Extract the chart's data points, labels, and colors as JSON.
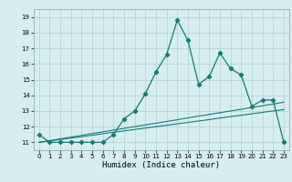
{
  "xlabel": "Humidex (Indice chaleur)",
  "bg_color": "#d6eef0",
  "grid_color": "#b0d0d3",
  "line_color": "#1a7a6e",
  "x": [
    0,
    1,
    2,
    3,
    4,
    5,
    6,
    7,
    8,
    9,
    10,
    11,
    12,
    13,
    14,
    15,
    16,
    17,
    18,
    19,
    20,
    21,
    22,
    23
  ],
  "y_main": [
    11.5,
    11.0,
    11.0,
    11.0,
    11.0,
    11.0,
    11.0,
    11.5,
    12.5,
    13.0,
    14.1,
    15.5,
    16.6,
    18.8,
    17.5,
    14.7,
    15.2,
    16.7,
    15.7,
    15.3,
    13.3,
    13.7,
    13.7,
    11.0
  ],
  "y_lin1": [
    11.0,
    11.09,
    11.18,
    11.27,
    11.36,
    11.45,
    11.55,
    11.64,
    11.73,
    11.82,
    11.91,
    12.0,
    12.09,
    12.18,
    12.27,
    12.36,
    12.45,
    12.55,
    12.64,
    12.73,
    12.82,
    12.91,
    13.0,
    13.09
  ],
  "y_lin2": [
    11.0,
    11.11,
    11.22,
    11.33,
    11.44,
    11.56,
    11.67,
    11.78,
    11.89,
    12.0,
    12.11,
    12.22,
    12.33,
    12.44,
    12.56,
    12.67,
    12.78,
    12.89,
    13.0,
    13.11,
    13.22,
    13.33,
    13.44,
    13.56
  ],
  "ylim": [
    10.5,
    19.5
  ],
  "xlim": [
    -0.5,
    23.5
  ],
  "yticks": [
    11,
    12,
    13,
    14,
    15,
    16,
    17,
    18,
    19
  ],
  "xticks": [
    0,
    1,
    2,
    3,
    4,
    5,
    6,
    7,
    8,
    9,
    10,
    11,
    12,
    13,
    14,
    15,
    16,
    17,
    18,
    19,
    20,
    21,
    22,
    23
  ]
}
